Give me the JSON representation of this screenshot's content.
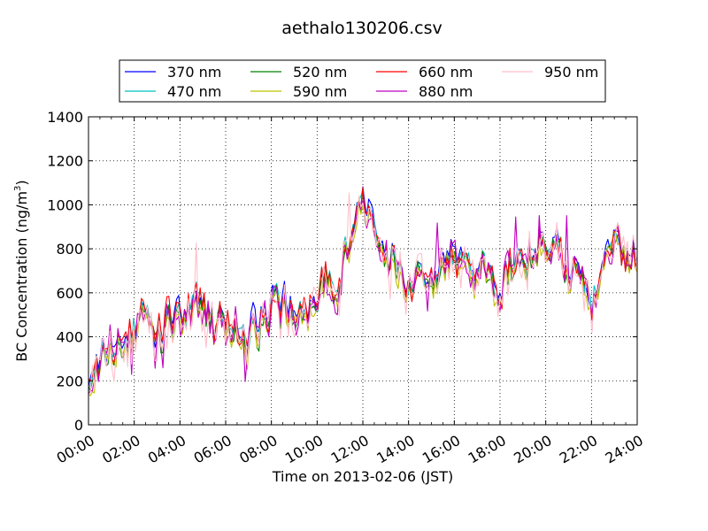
{
  "chart_data": {
    "type": "line",
    "title": "aethalo130206.csv",
    "xlabel": "Time on 2013-02-06 (JST)",
    "ylabel": "BC Concentration (ng/m",
    "ylabel_sup": "3",
    "ylabel_tail": ")",
    "xlim": [
      "00:00",
      "24:00"
    ],
    "ylim": [
      0,
      1400
    ],
    "xticks": [
      "00:00",
      "02:00",
      "04:00",
      "06:00",
      "08:00",
      "10:00",
      "12:00",
      "14:00",
      "16:00",
      "18:00",
      "20:00",
      "22:00",
      "24:00"
    ],
    "yticks": [
      0,
      200,
      400,
      600,
      800,
      1000,
      1200,
      1400
    ],
    "grid": true,
    "legend_position": "top",
    "baseline_hourly": [
      230,
      330,
      430,
      420,
      490,
      500,
      430,
      420,
      520,
      500,
      600,
      720,
      1000,
      800,
      650,
      560,
      760,
      700,
      650,
      770,
      850,
      680,
      610,
      760,
      700
    ],
    "series": [
      {
        "name": "370 nm",
        "color": "#0000ff",
        "bias": 15,
        "spread": 60
      },
      {
        "name": "470 nm",
        "color": "#00bfbf",
        "bias": 5,
        "spread": 65
      },
      {
        "name": "520 nm",
        "color": "#008000",
        "bias": -10,
        "spread": 70
      },
      {
        "name": "590 nm",
        "color": "#bfbf00",
        "bias": -20,
        "spread": 75
      },
      {
        "name": "660 nm",
        "color": "#ff0000",
        "bias": 10,
        "spread": 80
      },
      {
        "name": "880 nm",
        "color": "#bf00bf",
        "bias": -5,
        "spread": 110
      },
      {
        "name": "950 nm",
        "color": "#ffc0cb",
        "bias": -15,
        "spread": 150
      }
    ]
  }
}
